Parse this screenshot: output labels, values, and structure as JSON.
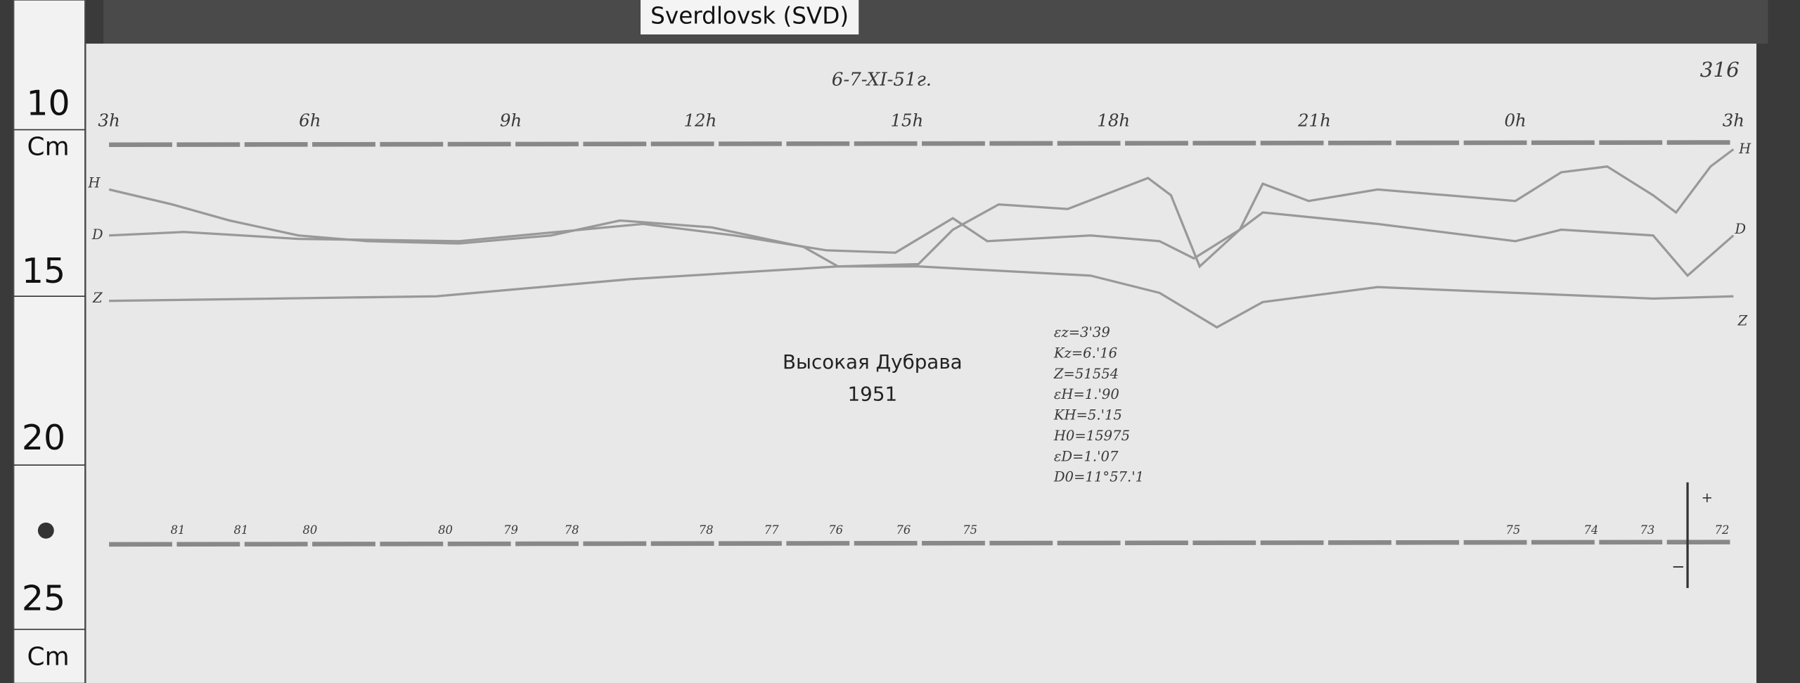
{
  "header": {
    "station": "Sverdlovsk (SVD)"
  },
  "ruler": {
    "labels": [
      "10",
      "Cm",
      "15",
      "20",
      "25",
      "Cm"
    ]
  },
  "sheet": {
    "date": "6-7-XI-51г.",
    "number": "316",
    "hours": [
      "3h",
      "6h",
      "9h",
      "12h",
      "15h",
      "18h",
      "21h",
      "0h",
      "3h"
    ],
    "station_name": "Высокая Дубрава",
    "year": "1951",
    "traces": [
      "H",
      "D",
      "Z"
    ],
    "constants": [
      "εz=3'39",
      "Kz=6.'16",
      "Z=51554",
      "εH=1.'90",
      "KH=5.'15",
      "H0=15975",
      "εD=1.'07",
      "D0=11°57.'1"
    ],
    "baseline_labels": [
      "81",
      "81",
      "80",
      "80",
      "79",
      "78",
      "78",
      "77",
      "76",
      "76",
      "75",
      "75",
      "74",
      "73",
      "72"
    ]
  }
}
